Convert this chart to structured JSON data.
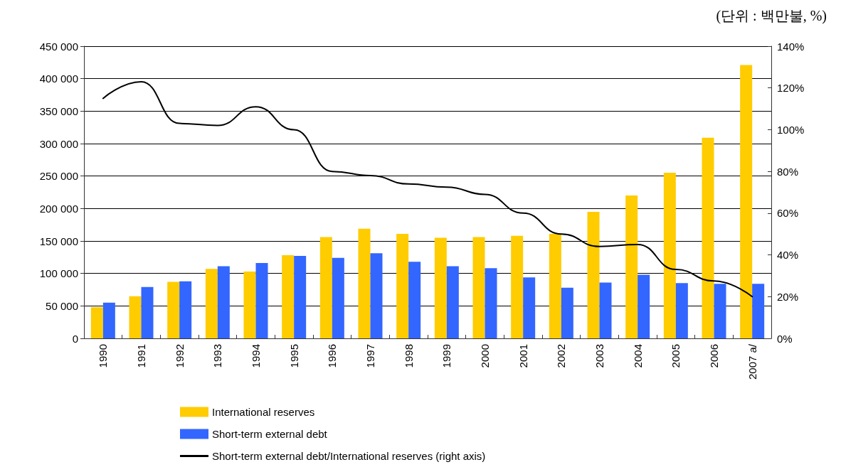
{
  "chart_data": {
    "type": "bar",
    "annotations": [
      "(단위 : 백만불, %)"
    ],
    "categories": [
      "1990",
      "1991",
      "1992",
      "1993",
      "1994",
      "1995",
      "1996",
      "1997",
      "1998",
      "1999",
      "2000",
      "2001",
      "2002",
      "2003",
      "2004",
      "2005",
      "2006",
      "2007 a/"
    ],
    "series": [
      {
        "name": "International reserves",
        "color": "#ffcc00",
        "values": [
          48000,
          65000,
          87000,
          107000,
          103000,
          128000,
          156000,
          169000,
          161000,
          155000,
          156000,
          158000,
          161000,
          195000,
          220000,
          255000,
          309000,
          421000
        ]
      },
      {
        "name": "Short-term external debt",
        "color": "#3366ff",
        "values": [
          55000,
          79000,
          88000,
          111000,
          116000,
          127000,
          124000,
          131000,
          118000,
          111000,
          108000,
          94000,
          78000,
          86000,
          98000,
          85000,
          84000,
          84000
        ]
      },
      {
        "name": "Short-term external debt/International reserves (right axis)",
        "type": "line",
        "axis": "y2",
        "color": "#000000",
        "marker": "none",
        "line_style": "solid",
        "values": [
          115,
          123,
          103,
          102,
          111,
          100,
          80,
          78,
          74,
          72.5,
          69,
          60,
          50,
          44,
          45,
          33,
          27.5,
          20
        ]
      }
    ],
    "ylim": [
      0,
      450000
    ],
    "yticks": [
      {
        "value": 0,
        "label": "0"
      },
      {
        "value": 50000,
        "label": "50 000"
      },
      {
        "value": 100000,
        "label": "100 000"
      },
      {
        "value": 150000,
        "label": "150 000"
      },
      {
        "value": 200000,
        "label": "200 000"
      },
      {
        "value": 250000,
        "label": "250 000"
      },
      {
        "value": 300000,
        "label": "300 000"
      },
      {
        "value": 350000,
        "label": "350 000"
      },
      {
        "value": 400000,
        "label": "400 000"
      },
      {
        "value": 450000,
        "label": "450 000"
      }
    ],
    "y2lim": [
      0,
      140
    ],
    "y2ticks": [
      {
        "value": 0,
        "label": "0%"
      },
      {
        "value": 20,
        "label": "20%"
      },
      {
        "value": 40,
        "label": "40%"
      },
      {
        "value": 60,
        "label": "60%"
      },
      {
        "value": 80,
        "label": "80%"
      },
      {
        "value": 100,
        "label": "100%"
      },
      {
        "value": 120,
        "label": "120%"
      },
      {
        "value": 140,
        "label": "140%"
      }
    ],
    "grid": "y",
    "legend": "bottom"
  }
}
